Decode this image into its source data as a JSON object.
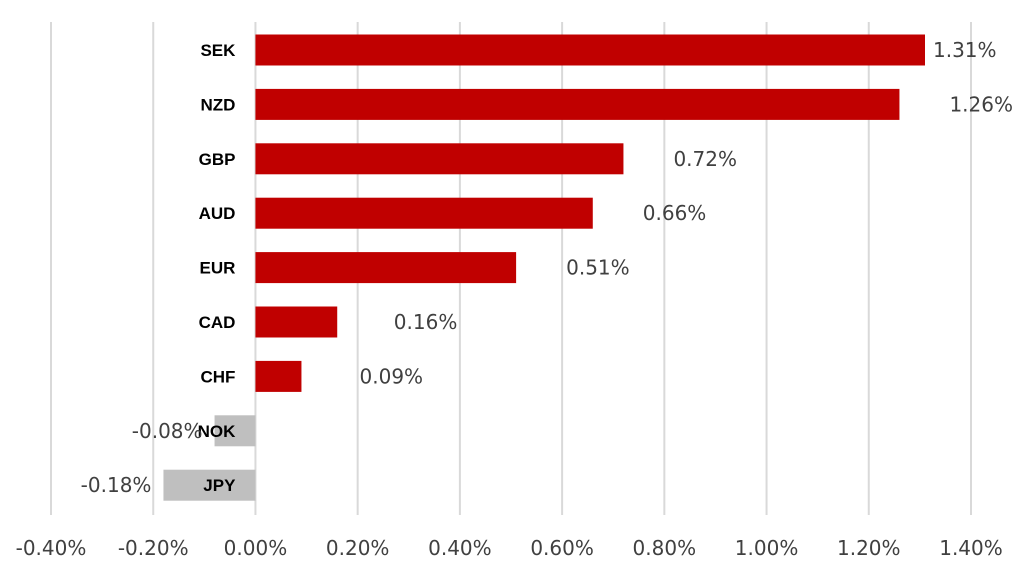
{
  "chart_data": {
    "type": "bar",
    "orientation": "horizontal",
    "categories": [
      "SEK",
      "NZD",
      "GBP",
      "AUD",
      "EUR",
      "CAD",
      "CHF",
      "NOK",
      "JPY"
    ],
    "values": [
      1.31,
      1.26,
      0.72,
      0.66,
      0.51,
      0.16,
      0.09,
      -0.08,
      -0.18
    ],
    "data_labels": [
      "1.31%",
      "1.26%",
      "0.72%",
      "0.66%",
      "0.51%",
      "0.16%",
      "0.09%",
      "-0.08%",
      "-0.18%"
    ],
    "xlim": [
      -0.4,
      1.4
    ],
    "x_ticks": [
      -0.4,
      -0.2,
      0.0,
      0.2,
      0.4,
      0.6,
      0.8,
      1.0,
      1.2,
      1.4
    ],
    "x_tick_labels": [
      "-0.40%",
      "-0.20%",
      "0.00%",
      "0.20%",
      "0.40%",
      "0.60%",
      "0.80%",
      "1.00%",
      "1.20%",
      "1.40%"
    ],
    "grid": true,
    "legend": "none",
    "colors": {
      "positive": "#c00000",
      "negative": "#bfbfbf",
      "grid": "#d9d9d9"
    }
  }
}
